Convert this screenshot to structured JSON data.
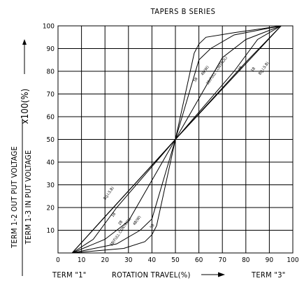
{
  "chart_data": {
    "type": "line",
    "title": "TAPERS B SERIES",
    "xlabel": "ROTATION TRAVEL(%)",
    "ylabel_num": "TERM 1-2 OUT PUT VOLTAGE",
    "ylabel_den": "TERM 1-3 IN PUT VOLTAGE",
    "ylabel_factor": "x100(%)",
    "term_left": "TERM \"1\"",
    "term_right": "TERM \"3\"",
    "xlim": [
      0,
      100
    ],
    "ylim": [
      0,
      100
    ],
    "x_ticks": [
      "0",
      "10",
      "20",
      "30",
      "40",
      "50",
      "60",
      "70",
      "80",
      "90",
      "100"
    ],
    "y_ticks": [
      "10",
      "20",
      "30",
      "40",
      "50",
      "60",
      "70",
      "80",
      "90",
      "100"
    ],
    "grid": true,
    "series": [
      {
        "name": "5B",
        "points": [
          [
            6,
            0
          ],
          [
            28,
            2
          ],
          [
            37,
            5
          ],
          [
            40,
            8
          ],
          [
            42,
            12
          ],
          [
            50,
            50
          ],
          [
            58,
            88
          ],
          [
            60,
            92
          ],
          [
            63,
            95
          ],
          [
            75,
            97
          ],
          [
            95,
            100
          ]
        ]
      },
      {
        "name": "4B",
        "points": [
          [
            6,
            0
          ],
          [
            25,
            4
          ],
          [
            35,
            10
          ],
          [
            40,
            15
          ],
          [
            50,
            50
          ],
          [
            60,
            85
          ],
          [
            65,
            90
          ],
          [
            75,
            96
          ],
          [
            95,
            100
          ]
        ]
      },
      {
        "name": "3B(FULL CONTROL)",
        "points": [
          [
            6,
            0
          ],
          [
            20,
            6
          ],
          [
            30,
            14
          ],
          [
            50,
            50
          ],
          [
            70,
            86
          ],
          [
            80,
            94
          ],
          [
            95,
            100
          ]
        ]
      },
      {
        "name": "2B",
        "points": [
          [
            6,
            0
          ],
          [
            15,
            6
          ],
          [
            25,
            20
          ],
          [
            50,
            50
          ],
          [
            75,
            80
          ],
          [
            85,
            94
          ],
          [
            95,
            100
          ]
        ]
      },
      {
        "name": "1B",
        "points": [
          [
            6,
            0
          ],
          [
            20,
            16
          ],
          [
            50,
            50
          ],
          [
            80,
            84
          ],
          [
            95,
            100
          ]
        ]
      },
      {
        "name": "B(J.I.S.B)",
        "points": [
          [
            6,
            0
          ],
          [
            50,
            50
          ],
          [
            95,
            100
          ]
        ]
      }
    ],
    "curve_labels": [
      {
        "text": "5B",
        "x": 59,
        "y": 76
      },
      {
        "text": "4B(W)",
        "x": 63,
        "y": 80
      },
      {
        "text": "3B(FULL CONTROL)",
        "x": 68,
        "y": 80
      },
      {
        "text": "2B",
        "x": 78,
        "y": 81
      },
      {
        "text": "1B",
        "x": 83.5,
        "y": 80.5
      },
      {
        "text": "B(J.I.S.B)",
        "x": 88,
        "y": 81
      },
      {
        "text": "B(J.I.S.B)",
        "x": 22,
        "y": 26
      },
      {
        "text": "1B",
        "x": 24,
        "y": 16.5
      },
      {
        "text": "2B",
        "x": 27,
        "y": 13
      },
      {
        "text": "3B(FULL CONTROL)",
        "x": 27,
        "y": 9
      },
      {
        "text": "4B(W)",
        "x": 34,
        "y": 14
      },
      {
        "text": "5B",
        "x": 40.5,
        "y": 11.5
      }
    ]
  }
}
